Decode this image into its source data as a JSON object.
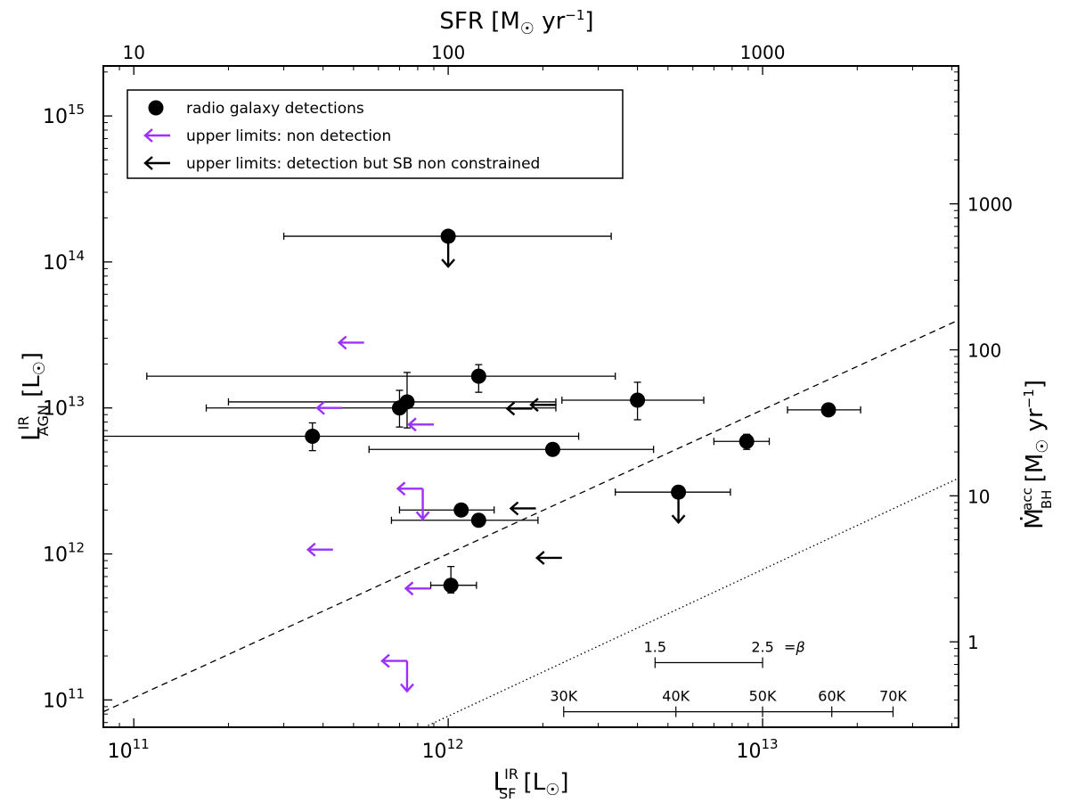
{
  "chart_data": {
    "type": "scatter",
    "title": "",
    "xlabel": {
      "base": "L",
      "sup": "IR",
      "sub": "SF",
      "unit": "[L",
      "sunsym": "☉",
      "close": "]"
    },
    "ylabel": {
      "base": "L",
      "sup": "IR",
      "sub": "AGN",
      "unit": "[L",
      "sunsym": "☉",
      "close": "]"
    },
    "top_xlabel": {
      "text": "SFR [M",
      "sunsym": "☉",
      "yr": "yr",
      "exp": "−1",
      "close": "]"
    },
    "right_ylabel": {
      "base": "Ṁ",
      "sup": "acc",
      "sub": "BH",
      "text": "[M",
      "sunsym": "☉",
      "yr": "yr",
      "exp": "−1",
      "close": "]"
    },
    "xscale": "log",
    "yscale": "log",
    "xlim": [
      80000000000,
      42000000000000
    ],
    "ylim": [
      65000000000,
      2200000000000000
    ],
    "x_ticks": [
      {
        "value": 100000000000,
        "base": "10",
        "exp": "11"
      },
      {
        "value": 1000000000000,
        "base": "10",
        "exp": "12"
      },
      {
        "value": 10000000000000,
        "base": "10",
        "exp": "13"
      }
    ],
    "y_ticks": [
      {
        "value": 100000000000,
        "base": "10",
        "exp": "11"
      },
      {
        "value": 1000000000000,
        "base": "10",
        "exp": "12"
      },
      {
        "value": 10000000000000,
        "base": "10",
        "exp": "13"
      },
      {
        "value": 100000000000000,
        "base": "10",
        "exp": "14"
      },
      {
        "value": 1000000000000000,
        "base": "10",
        "exp": "15"
      }
    ],
    "top_ticks": [
      {
        "value": 10,
        "label": "10"
      },
      {
        "value": 100,
        "label": "100"
      },
      {
        "value": 1000,
        "label": "1000"
      }
    ],
    "sfr_per_lsun": 1e-10,
    "right_ticks": [
      {
        "value": 1,
        "label": "1"
      },
      {
        "value": 10,
        "label": "10"
      },
      {
        "value": 100,
        "label": "100"
      },
      {
        "value": 1000,
        "label": "1000"
      }
    ],
    "bhar_per_lsun": 4e-12,
    "legend": {
      "position": "top-left",
      "items": [
        {
          "label": "radio galaxy detections",
          "marker": "circle",
          "color": "#000000"
        },
        {
          "label": "upper limits: non detection",
          "marker": "arrow-left",
          "color": "#9b30ff"
        },
        {
          "label": "upper limits: detection but SB non constrained",
          "marker": "arrow-left",
          "color": "#000000"
        }
      ]
    },
    "detections": [
      {
        "x": 1000000000000,
        "y": 150000000000000,
        "xerr": [
          300000000000,
          3300000000000
        ],
        "yerr": null,
        "upper_limit": true
      },
      {
        "x": 1250000000000,
        "y": 16500000000000,
        "xerr": [
          110000000000,
          3400000000000
        ],
        "yerr": [
          12800000000000,
          19800000000000
        ]
      },
      {
        "x": 4000000000000,
        "y": 11300000000000,
        "xerr": [
          2300000000000,
          6500000000000
        ],
        "yerr": [
          8300000000000,
          15000000000000
        ]
      },
      {
        "x": 16200000000000,
        "y": 9700000000000,
        "xerr": [
          12000000000000,
          20500000000000
        ],
        "yerr": null
      },
      {
        "x": 740000000000,
        "y": 11000000000000,
        "xerr": [
          200000000000,
          2200000000000
        ],
        "yerr": [
          7300000000000,
          17500000000000
        ]
      },
      {
        "x": 700000000000,
        "y": 10000000000000,
        "xerr": [
          170000000000,
          2200000000000
        ],
        "yerr": [
          7400000000000,
          13200000000000
        ]
      },
      {
        "x": 370000000000,
        "y": 6400000000000,
        "xerr": [
          80000000000,
          2600000000000
        ],
        "yerr": [
          5100000000000,
          7900000000000
        ]
      },
      {
        "x": 2150000000000,
        "y": 5200000000000,
        "xerr": [
          560000000000,
          4500000000000
        ],
        "yerr": null
      },
      {
        "x": 8900000000000,
        "y": 5900000000000,
        "xerr": [
          7000000000000,
          10500000000000
        ],
        "yerr": [
          5200000000000,
          6600000000000
        ]
      },
      {
        "x": 5400000000000,
        "y": 2650000000000,
        "xerr": [
          3400000000000,
          7900000000000
        ],
        "yerr": null,
        "upper_limit": true
      },
      {
        "x": 1100000000000,
        "y": 2000000000000,
        "xerr": [
          700000000000,
          1400000000000
        ],
        "yerr": null
      },
      {
        "x": 1250000000000,
        "y": 1700000000000,
        "xerr": [
          660000000000,
          1930000000000
        ],
        "yerr": null
      },
      {
        "x": 1020000000000,
        "y": 610000000000,
        "xerr": [
          880000000000,
          1230000000000
        ],
        "yerr": [
          540000000000,
          820000000000
        ]
      }
    ],
    "upper_limits_nondetection": [
      {
        "x": 540000000000,
        "y": 28000000000000
      },
      {
        "x": 460000000000,
        "y": 10000000000000
      },
      {
        "x": 900000000000,
        "y": 7700000000000
      },
      {
        "x": 830000000000,
        "y": 2800000000000,
        "down": true
      },
      {
        "x": 430000000000,
        "y": 1070000000000
      },
      {
        "x": 880000000000,
        "y": 580000000000
      },
      {
        "x": 740000000000,
        "y": 185000000000,
        "down": true
      }
    ],
    "upper_limits_sb_unconstrained": [
      {
        "x": 2200000000000,
        "y": 10500000000000
      },
      {
        "x": 1850000000000,
        "y": 9900000000000
      },
      {
        "x": 1900000000000,
        "y": 2050000000000
      },
      {
        "x": 2300000000000,
        "y": 940000000000
      }
    ],
    "lines": [
      {
        "style": "dashed",
        "x": [
          80000000000,
          42000000000000
        ],
        "y": [
          83000000000,
          40000000000000
        ]
      },
      {
        "style": "dotted",
        "x": [
          840000000000,
          42000000000000
        ],
        "y": [
          65000000000,
          3300000000000
        ]
      }
    ],
    "beta_scale": {
      "y": 180000000000,
      "x_range": [
        4550000000000,
        10000000000000
      ],
      "labels": [
        {
          "text": "1.5",
          "x": 4550000000000
        },
        {
          "text": "2.5",
          "x": 10000000000000
        }
      ],
      "suffix": "=β"
    },
    "temperature_scale": {
      "y": 83000000000,
      "ticks": [
        {
          "label": "30K",
          "x": 2330000000000
        },
        {
          "label": "40K",
          "x": 5300000000000
        },
        {
          "label": "50K",
          "x": 10000000000000
        },
        {
          "label": "60K",
          "x": 16600000000000
        },
        {
          "label": "70K",
          "x": 26000000000000
        }
      ]
    }
  }
}
